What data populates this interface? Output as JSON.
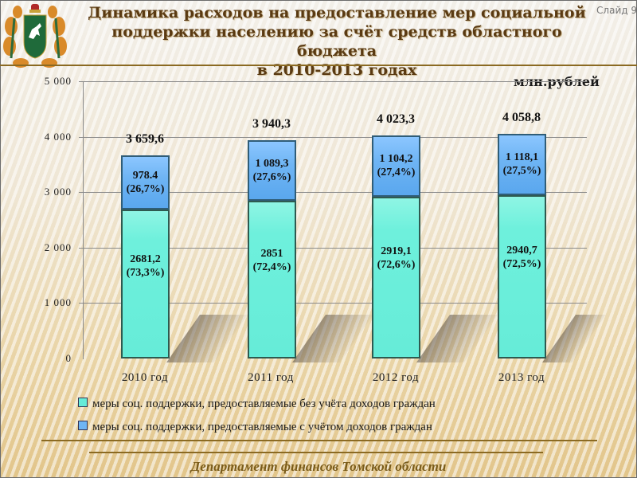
{
  "header": {
    "title_lines": [
      "Динамика расходов на предоставление мер социальной",
      "поддержки населению за счёт средств областного",
      "бюджета",
      "в 2010-2013 годах"
    ],
    "slide_number": "Слайд 9",
    "unit": "млн.рублей"
  },
  "chart_data": {
    "type": "bar",
    "stacked": true,
    "title": "Динамика расходов на предоставление мер социальной поддержки населению за счёт средств областного бюджета в 2010-2013 годах",
    "ylabel": "млн.рублей",
    "xlabel": "",
    "ylim": [
      0,
      5000
    ],
    "yticks": [
      "0",
      "1 000",
      "2 000",
      "3 000",
      "4 000",
      "5 000"
    ],
    "grid": true,
    "legend_position": "bottom",
    "categories": [
      "2010 год",
      "2011 год",
      "2012 год",
      "2013 год"
    ],
    "series": [
      {
        "name": "меры соц. поддержки, предоставляемые без учёта доходов граждан",
        "color": "#66ecd8",
        "values": [
          2681.2,
          2851,
          2919.1,
          2940.7
        ],
        "labels": [
          "2681,2",
          "2851",
          "2919,1",
          "2940,7"
        ],
        "percent_labels": [
          "(73,3%)",
          "(72,4%)",
          "(72,6%)",
          "(72,5%)"
        ]
      },
      {
        "name": "меры соц. поддержки, предоставляемые с учётом доходов граждан",
        "color": "#6fb5f4",
        "values": [
          978.4,
          1089.3,
          1104.2,
          1118.1
        ],
        "labels": [
          "978.4",
          "1 089,3",
          "1 104,2",
          "1 118,1"
        ],
        "percent_labels": [
          "(26,7%)",
          "(27,6%)",
          "(27,4%)",
          "(27,5%)"
        ]
      }
    ],
    "totals": [
      3659.6,
      3940.3,
      4023.3,
      4058.8
    ],
    "total_labels": [
      "3 659,6",
      "3 940,3",
      "4 023,3",
      "4 058,8"
    ]
  },
  "legend": {
    "items": [
      {
        "label": "меры соц. поддержки, предоставляемые без учёта доходов граждан",
        "color": "#66ecd8"
      },
      {
        "label": "меры соц. поддержки, предоставляемые с учётом доходов граждан",
        "color": "#6fb5f4"
      }
    ]
  },
  "footer": {
    "text": "Департамент финансов Томской области"
  },
  "icons": {
    "crest": "tomsk-coat-of-arms-icon"
  }
}
